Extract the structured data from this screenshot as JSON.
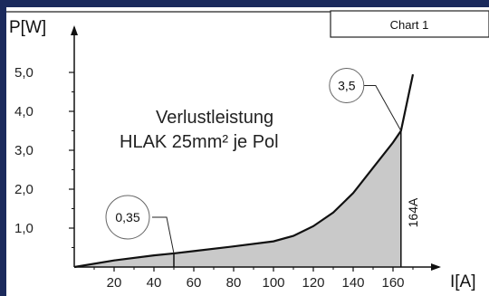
{
  "chart_tab": {
    "label": "Chart 1"
  },
  "chart_data": {
    "type": "area",
    "title": "Verlustleistung",
    "subtitle": "HLAK 25mm² je Pol",
    "xlabel": "I[A]",
    "ylabel": "P[W]",
    "xlim": [
      0,
      170
    ],
    "ylim": [
      0,
      5.5
    ],
    "x_ticks": [
      20,
      40,
      60,
      80,
      100,
      120,
      140,
      160
    ],
    "x_tick_labels": [
      "20",
      "40",
      "60",
      "80",
      "100",
      "120",
      "140",
      "160"
    ],
    "y_ticks": [
      1.0,
      2.0,
      3.0,
      4.0,
      5.0
    ],
    "y_tick_labels": [
      "1,0",
      "2,0",
      "3,0",
      "4,0",
      "5,0"
    ],
    "series": [
      {
        "x": [
          0,
          20,
          40,
          50,
          60,
          80,
          100,
          110,
          120,
          130,
          140,
          150,
          160,
          164,
          170
        ],
        "y": [
          0,
          0.17,
          0.3,
          0.35,
          0.41,
          0.53,
          0.66,
          0.8,
          1.05,
          1.4,
          1.9,
          2.55,
          3.2,
          3.5,
          4.95
        ]
      }
    ],
    "shaded_area_x_range": [
      0,
      164
    ],
    "annotations": [
      {
        "text": "0,35",
        "x": 50,
        "y": 0.35
      },
      {
        "text": "3,5",
        "x": 164,
        "y": 3.5
      },
      {
        "text": "164A",
        "x": 164
      }
    ],
    "colors": {
      "area": "#c9c9c9",
      "line": "#111111",
      "background": "#1b2a5c"
    }
  }
}
